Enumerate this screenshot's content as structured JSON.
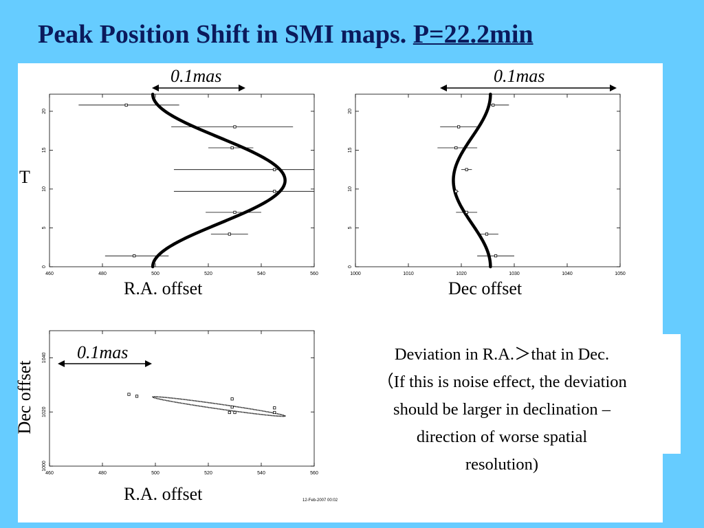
{
  "title": {
    "main": "Peak Position Shift in SMI maps. ",
    "period": "P=22.2min"
  },
  "scale_label": "0.1mas",
  "t_label": "T",
  "labels": {
    "ra_offset": "R.A. offset",
    "dec_offset": "Dec offset"
  },
  "note_lines": [
    "Deviation in R.A.＞that in Dec.",
    "（If this is noise effect, the deviation",
    "should be larger in declination –",
    "direction of worse spatial",
    "resolution)"
  ],
  "date_stamp": "12-Feb-2007 00:02",
  "chart_data": [
    {
      "type": "scatter",
      "title": "",
      "xlabel": "R.A. offset",
      "ylabel": "T",
      "xlim": [
        460,
        560
      ],
      "ylim": [
        0,
        22.2
      ],
      "xticks": [
        "460",
        "480",
        "500",
        "520",
        "540",
        "560"
      ],
      "yticks": [
        "0",
        "5",
        "10",
        "15",
        "20"
      ],
      "model_curve": {
        "shape": "sinusoid",
        "center": 524,
        "amplitude": 25,
        "period": 22.2,
        "x_at_t0": 499
      },
      "points": [
        {
          "y": 1.4,
          "x": 492,
          "xerr_lo": 481,
          "xerr_hi": 505
        },
        {
          "y": 4.2,
          "x": 528,
          "xerr_lo": 521,
          "xerr_hi": 535
        },
        {
          "y": 7.0,
          "x": 530,
          "xerr_lo": 519,
          "xerr_hi": 540
        },
        {
          "y": 9.7,
          "x": 545,
          "xerr_lo": 507,
          "xerr_hi": 565
        },
        {
          "y": 12.5,
          "x": 545,
          "xerr_lo": 507,
          "xerr_hi": 565
        },
        {
          "y": 15.3,
          "x": 529,
          "xerr_lo": 520,
          "xerr_hi": 537
        },
        {
          "y": 18.0,
          "x": 530,
          "xerr_lo": 506,
          "xerr_hi": 552
        },
        {
          "y": 20.8,
          "x": 489,
          "xerr_lo": 471,
          "xerr_hi": 509
        }
      ]
    },
    {
      "type": "scatter",
      "title": "",
      "xlabel": "Dec offset",
      "ylabel": "",
      "xlim": [
        1000,
        1050
      ],
      "ylim": [
        0,
        22.2
      ],
      "xticks": [
        "1000",
        "1010",
        "1020",
        "1030",
        "1040",
        "1050"
      ],
      "yticks": [
        "0",
        "5",
        "10",
        "15",
        "20"
      ],
      "model_curve": {
        "shape": "sinusoid",
        "center": 1022,
        "amplitude": 3.5,
        "period": 22.2,
        "x_at_t0": 1025.5
      },
      "points": [
        {
          "y": 1.4,
          "x": 1026.5,
          "xerr_lo": 1023,
          "xerr_hi": 1030
        },
        {
          "y": 4.2,
          "x": 1024.8,
          "xerr_lo": 1023,
          "xerr_hi": 1027
        },
        {
          "y": 7.0,
          "x": 1021,
          "xerr_lo": 1019,
          "xerr_hi": 1023
        },
        {
          "y": 9.7,
          "x": 1019,
          "xerr_lo": 1018.5,
          "xerr_hi": 1019.5
        },
        {
          "y": 12.5,
          "x": 1021,
          "xerr_lo": 1020,
          "xerr_hi": 1022
        },
        {
          "y": 15.3,
          "x": 1019,
          "xerr_lo": 1015.5,
          "xerr_hi": 1023
        },
        {
          "y": 18.0,
          "x": 1019.5,
          "xerr_lo": 1016,
          "xerr_hi": 1023
        },
        {
          "y": 20.8,
          "x": 1026,
          "xerr_lo": 1025,
          "xerr_hi": 1029
        }
      ]
    },
    {
      "type": "scatter",
      "title": "",
      "xlabel": "R.A. offset",
      "ylabel": "Dec offset",
      "xlim": [
        460,
        560
      ],
      "ylim": [
        1000,
        1050
      ],
      "xticks": [
        "460",
        "480",
        "500",
        "520",
        "540",
        "560"
      ],
      "yticks": [
        "1000",
        "1020",
        "1040"
      ],
      "ellipse": {
        "center": [
          524,
          1022
        ],
        "ra_amplitude": 25,
        "dec_amplitude": 3.5
      },
      "points": [
        {
          "x": 490,
          "y": 1026.5
        },
        {
          "x": 493,
          "y": 1025.8
        },
        {
          "x": 529,
          "y": 1024.8
        },
        {
          "x": 529,
          "y": 1021.8
        },
        {
          "x": 528,
          "y": 1019.8
        },
        {
          "x": 530,
          "y": 1019.8
        },
        {
          "x": 545,
          "y": 1021.5
        },
        {
          "x": 545,
          "y": 1019.8
        }
      ]
    }
  ]
}
